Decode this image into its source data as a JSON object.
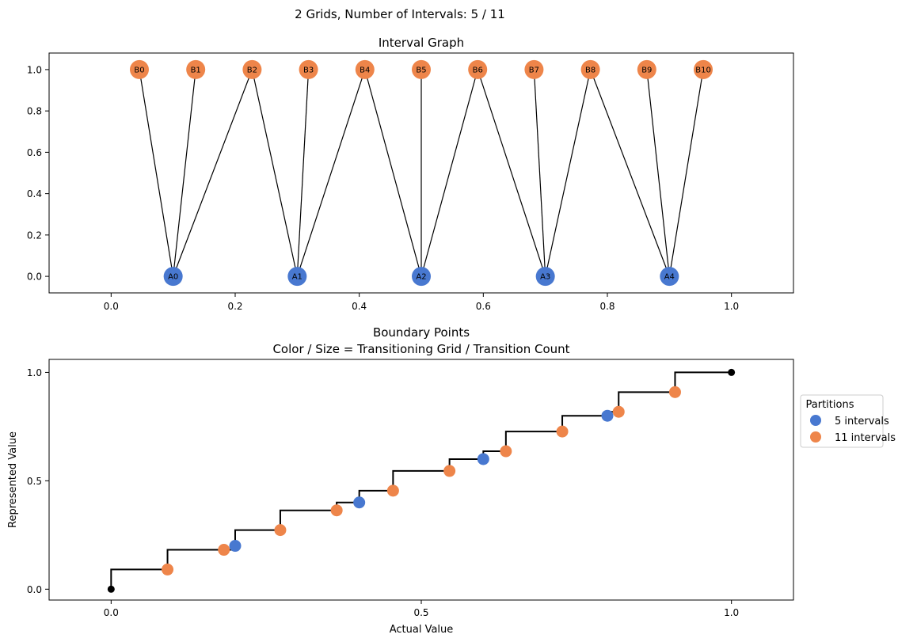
{
  "figure": {
    "suptitle": "2 Grids, Number of Intervals: 5 / 11"
  },
  "colors": {
    "grid_a": "#4878d0",
    "grid_b": "#ee854a",
    "line": "#000000",
    "endpoint": "#000000"
  },
  "chart_data": [
    {
      "type": "scatter",
      "subtype": "bipartite-interval-graph",
      "title": "Interval Graph",
      "xlim": [
        -0.1,
        1.1
      ],
      "ylim": [
        -0.08,
        1.08
      ],
      "xticks": [
        "0.0",
        "0.2",
        "0.4",
        "0.6",
        "0.8",
        "1.0"
      ],
      "yticks": [
        "0.0",
        "0.2",
        "0.4",
        "0.6",
        "0.8",
        "1.0"
      ],
      "grid": false,
      "nodes_a": [
        {
          "label": "A0",
          "x": 0.1,
          "y": 0
        },
        {
          "label": "A1",
          "x": 0.3,
          "y": 0
        },
        {
          "label": "A2",
          "x": 0.5,
          "y": 0
        },
        {
          "label": "A3",
          "x": 0.7,
          "y": 0
        },
        {
          "label": "A4",
          "x": 0.9,
          "y": 0
        }
      ],
      "nodes_b": [
        {
          "label": "B0",
          "x": 0.0455,
          "y": 1
        },
        {
          "label": "B1",
          "x": 0.1364,
          "y": 1
        },
        {
          "label": "B2",
          "x": 0.2273,
          "y": 1
        },
        {
          "label": "B3",
          "x": 0.3182,
          "y": 1
        },
        {
          "label": "B4",
          "x": 0.4091,
          "y": 1
        },
        {
          "label": "B5",
          "x": 0.5,
          "y": 1
        },
        {
          "label": "B6",
          "x": 0.5909,
          "y": 1
        },
        {
          "label": "B7",
          "x": 0.6818,
          "y": 1
        },
        {
          "label": "B8",
          "x": 0.7727,
          "y": 1
        },
        {
          "label": "B9",
          "x": 0.8636,
          "y": 1
        },
        {
          "label": "B10",
          "x": 0.9545,
          "y": 1
        }
      ],
      "edges": [
        [
          "A0",
          "B0"
        ],
        [
          "A0",
          "B1"
        ],
        [
          "A0",
          "B2"
        ],
        [
          "A1",
          "B2"
        ],
        [
          "A1",
          "B3"
        ],
        [
          "A1",
          "B4"
        ],
        [
          "A2",
          "B4"
        ],
        [
          "A2",
          "B5"
        ],
        [
          "A2",
          "B6"
        ],
        [
          "A3",
          "B6"
        ],
        [
          "A3",
          "B7"
        ],
        [
          "A3",
          "B8"
        ],
        [
          "A4",
          "B8"
        ],
        [
          "A4",
          "B9"
        ],
        [
          "A4",
          "B10"
        ]
      ]
    },
    {
      "type": "scatter",
      "subtype": "step-with-points",
      "title": "Boundary Points",
      "subtitle": "Color / Size = Transitioning Grid / Transition Count",
      "xlabel": "Actual Value",
      "ylabel": "Represented Value",
      "xlim": [
        -0.1,
        1.1
      ],
      "ylim": [
        -0.05,
        1.06
      ],
      "xticks": [
        "0.0",
        "0.5",
        "1.0"
      ],
      "yticks": [
        "0.0",
        "0.5",
        "1.0"
      ],
      "grid": false,
      "legend": {
        "title": "Partitions",
        "placement": "right, outside",
        "entries": [
          {
            "label": "5 intervals",
            "series": "grid_a"
          },
          {
            "label": "11 intervals",
            "series": "grid_b"
          }
        ]
      },
      "step_points": [
        [
          0,
          0
        ],
        [
          0,
          0.0909
        ],
        [
          0.0909,
          0.0909
        ],
        [
          0.0909,
          0.1818
        ],
        [
          0.1818,
          0.1818
        ],
        [
          0.2,
          0.1818
        ],
        [
          0.2,
          0.2727
        ],
        [
          0.2727,
          0.2727
        ],
        [
          0.2727,
          0.3636
        ],
        [
          0.3636,
          0.3636
        ],
        [
          0.3636,
          0.4
        ],
        [
          0.4,
          0.4
        ],
        [
          0.4,
          0.4545
        ],
        [
          0.4545,
          0.4545
        ],
        [
          0.4545,
          0.5455
        ],
        [
          0.5455,
          0.5455
        ],
        [
          0.5455,
          0.6
        ],
        [
          0.6,
          0.6
        ],
        [
          0.6,
          0.6364
        ],
        [
          0.6364,
          0.6364
        ],
        [
          0.6364,
          0.7273
        ],
        [
          0.7273,
          0.7273
        ],
        [
          0.7273,
          0.8
        ],
        [
          0.8,
          0.8
        ],
        [
          0.8,
          0.8182
        ],
        [
          0.8182,
          0.8182
        ],
        [
          0.8182,
          0.9091
        ],
        [
          0.9091,
          0.9091
        ],
        [
          0.9091,
          1.0
        ],
        [
          1.0,
          1.0
        ]
      ],
      "endpoints": [
        [
          0,
          0
        ],
        [
          1,
          1
        ]
      ],
      "points": [
        {
          "x": 0.0909,
          "y": 0.0909,
          "series": "grid_b"
        },
        {
          "x": 0.1818,
          "y": 0.1818,
          "series": "grid_b"
        },
        {
          "x": 0.2,
          "y": 0.2,
          "series": "grid_a"
        },
        {
          "x": 0.2727,
          "y": 0.2727,
          "series": "grid_b"
        },
        {
          "x": 0.3636,
          "y": 0.3636,
          "series": "grid_b"
        },
        {
          "x": 0.4,
          "y": 0.4,
          "series": "grid_a"
        },
        {
          "x": 0.4545,
          "y": 0.4545,
          "series": "grid_b"
        },
        {
          "x": 0.5455,
          "y": 0.5455,
          "series": "grid_b"
        },
        {
          "x": 0.6,
          "y": 0.6,
          "series": "grid_a"
        },
        {
          "x": 0.6364,
          "y": 0.6364,
          "series": "grid_b"
        },
        {
          "x": 0.7273,
          "y": 0.7273,
          "series": "grid_b"
        },
        {
          "x": 0.8,
          "y": 0.8,
          "series": "grid_a"
        },
        {
          "x": 0.8182,
          "y": 0.8182,
          "series": "grid_b"
        },
        {
          "x": 0.9091,
          "y": 0.9091,
          "series": "grid_b"
        }
      ]
    }
  ]
}
